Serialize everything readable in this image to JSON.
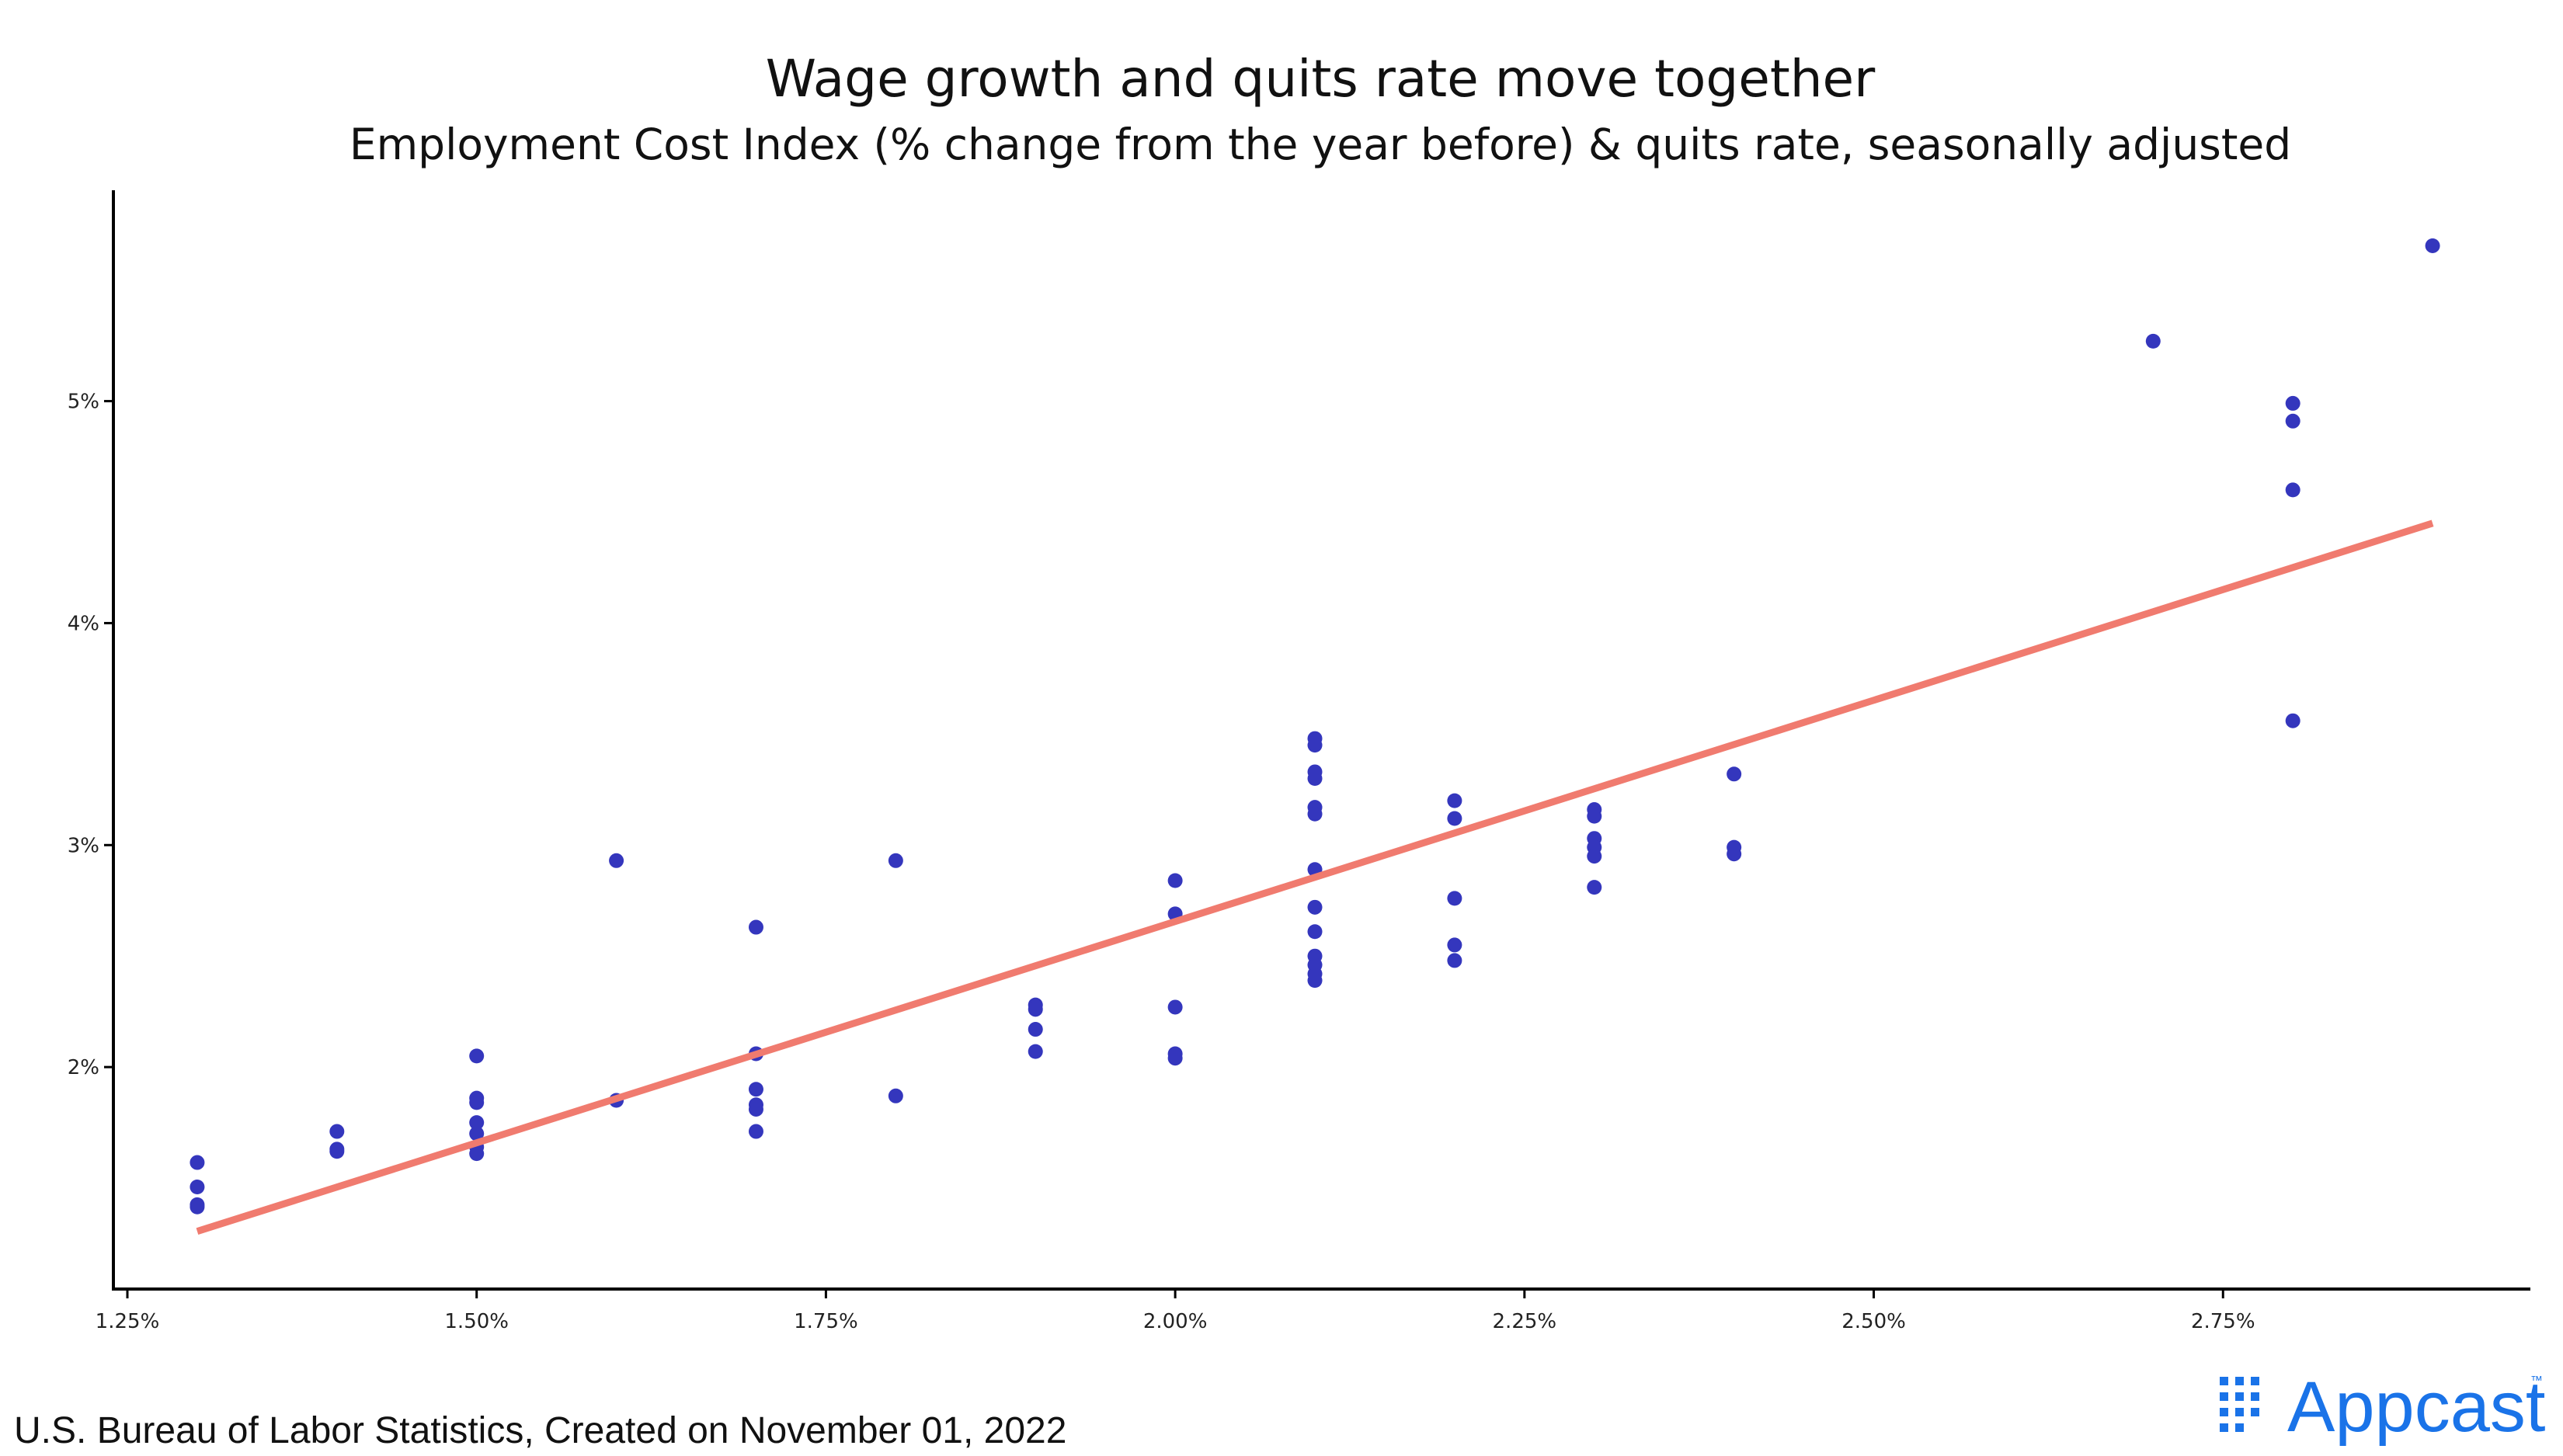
{
  "source_text": "U.S. Bureau of Labor Statistics, Created on November 01, 2022",
  "logo": {
    "text": "Appcast",
    "trademark": "™",
    "color": "#1a73e8"
  },
  "colors": {
    "points": "#3436bd",
    "trend": "#f07b6f",
    "axis": "#000000"
  },
  "chart_data": {
    "type": "scatter",
    "title": "Wage growth and quits rate move together",
    "subtitle": "Employment Cost Index (% change from the year before) & quits rate, seasonally adjusted",
    "xlabel": "",
    "ylabel": "",
    "xlim": [
      1.24,
      2.97
    ],
    "ylim": [
      1.0,
      5.95
    ],
    "x_ticks": [
      {
        "value": 1.25,
        "label": "1.25%"
      },
      {
        "value": 1.5,
        "label": "1.50%"
      },
      {
        "value": 1.75,
        "label": "1.75%"
      },
      {
        "value": 2.0,
        "label": "2.00%"
      },
      {
        "value": 2.25,
        "label": "2.25%"
      },
      {
        "value": 2.5,
        "label": "2.50%"
      },
      {
        "value": 2.75,
        "label": "2.75%"
      }
    ],
    "y_ticks": [
      {
        "value": 2,
        "label": "2%"
      },
      {
        "value": 3,
        "label": "3%"
      },
      {
        "value": 4,
        "label": "4%"
      },
      {
        "value": 5,
        "label": "5%"
      }
    ],
    "grid": false,
    "legend": "none",
    "points": [
      [
        1.3,
        1.57
      ],
      [
        1.3,
        1.46
      ],
      [
        1.3,
        1.38
      ],
      [
        1.3,
        1.37
      ],
      [
        1.4,
        1.71
      ],
      [
        1.4,
        1.63
      ],
      [
        1.4,
        1.62
      ],
      [
        1.5,
        2.05
      ],
      [
        1.5,
        1.86
      ],
      [
        1.5,
        1.84
      ],
      [
        1.5,
        1.75
      ],
      [
        1.5,
        1.7
      ],
      [
        1.5,
        1.64
      ],
      [
        1.5,
        1.61
      ],
      [
        1.6,
        2.93
      ],
      [
        1.6,
        1.85
      ],
      [
        1.7,
        2.63
      ],
      [
        1.7,
        2.06
      ],
      [
        1.7,
        1.9
      ],
      [
        1.7,
        1.83
      ],
      [
        1.7,
        1.81
      ],
      [
        1.7,
        1.71
      ],
      [
        1.8,
        2.93
      ],
      [
        1.8,
        1.87
      ],
      [
        1.9,
        2.28
      ],
      [
        1.9,
        2.26
      ],
      [
        1.9,
        2.17
      ],
      [
        1.9,
        2.07
      ],
      [
        2.0,
        2.84
      ],
      [
        2.0,
        2.69
      ],
      [
        2.0,
        2.27
      ],
      [
        2.0,
        2.06
      ],
      [
        2.0,
        2.04
      ],
      [
        2.1,
        3.48
      ],
      [
        2.1,
        3.45
      ],
      [
        2.1,
        3.33
      ],
      [
        2.1,
        3.3
      ],
      [
        2.1,
        3.17
      ],
      [
        2.1,
        3.14
      ],
      [
        2.1,
        2.89
      ],
      [
        2.1,
        2.72
      ],
      [
        2.1,
        2.61
      ],
      [
        2.1,
        2.5
      ],
      [
        2.1,
        2.46
      ],
      [
        2.1,
        2.42
      ],
      [
        2.1,
        2.39
      ],
      [
        2.2,
        3.2
      ],
      [
        2.2,
        3.12
      ],
      [
        2.2,
        2.76
      ],
      [
        2.2,
        2.55
      ],
      [
        2.2,
        2.48
      ],
      [
        2.3,
        3.16
      ],
      [
        2.3,
        3.13
      ],
      [
        2.3,
        3.03
      ],
      [
        2.3,
        2.99
      ],
      [
        2.3,
        2.95
      ],
      [
        2.3,
        2.81
      ],
      [
        2.4,
        3.32
      ],
      [
        2.4,
        2.99
      ],
      [
        2.4,
        2.96
      ],
      [
        2.7,
        5.27
      ],
      [
        2.8,
        4.99
      ],
      [
        2.8,
        4.91
      ],
      [
        2.8,
        4.6
      ],
      [
        2.8,
        3.56
      ],
      [
        2.9,
        5.7
      ]
    ],
    "trend_line": {
      "x": [
        1.3,
        2.9
      ],
      "y": [
        1.26,
        4.45
      ]
    }
  }
}
